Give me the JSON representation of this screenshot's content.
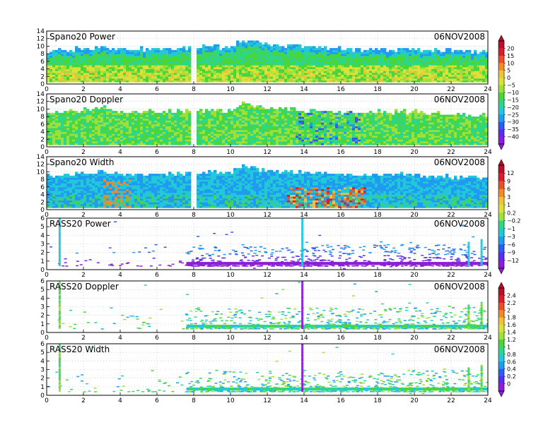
{
  "figure": {
    "date": "06NOV2008"
  },
  "colorbars": [
    {
      "id": "cb-spano",
      "labels": [
        "20",
        "15",
        "10",
        "5",
        "0",
        "−5",
        "−10",
        "−15",
        "−20",
        "−25",
        "−30",
        "−35",
        "−40"
      ]
    },
    {
      "id": "cb-width-power",
      "labels": [
        "12",
        "9",
        "6",
        "3",
        "1",
        "0.2",
        "−0.2",
        "−1",
        "−3",
        "−6",
        "−9",
        "−12"
      ]
    },
    {
      "id": "cb-rass",
      "labels": [
        "2.4",
        "2.2",
        "2",
        "1.8",
        "1.6",
        "1.4",
        "1.2",
        "1",
        "0.8",
        "0.6",
        "0.4",
        "0.2",
        "0"
      ]
    }
  ],
  "colors": {
    "palette": [
      "#8a1fd6",
      "#5a2df0",
      "#2f5cf0",
      "#1f9bf0",
      "#22c8d8",
      "#2dd68a",
      "#4ad63a",
      "#9ee03a",
      "#d8e23a",
      "#f0c23a",
      "#f08a2a",
      "#e8502a",
      "#d81e2a",
      "#b8102a"
    ]
  },
  "chart_data": [
    {
      "type": "heatmap",
      "title": "Spano20 Power",
      "date": "06NOV2008",
      "xticks": [
        "0",
        "2",
        "4",
        "6",
        "8",
        "10",
        "12",
        "14",
        "16",
        "18",
        "20",
        "22",
        "24"
      ],
      "yticks": [
        "0",
        "2",
        "4",
        "6",
        "8",
        "10",
        "12",
        "14"
      ],
      "xlim": [
        0,
        24
      ],
      "ylim": [
        0,
        14
      ],
      "echo_top_km": [
        [
          0,
          8.5
        ],
        [
          3,
          9.5
        ],
        [
          4,
          9
        ],
        [
          6,
          9
        ],
        [
          8,
          9.5
        ],
        [
          10,
          9.5
        ],
        [
          10.5,
          11.5
        ],
        [
          12,
          10
        ],
        [
          14,
          9.5
        ],
        [
          16,
          9
        ],
        [
          18,
          9
        ],
        [
          20,
          9
        ],
        [
          22,
          8.5
        ],
        [
          24,
          8
        ]
      ],
      "color_range": [
        -40,
        20
      ]
    },
    {
      "type": "heatmap",
      "title": "Spano20 Doppler",
      "date": "06NOV2008",
      "xticks": [
        "0",
        "2",
        "4",
        "6",
        "8",
        "10",
        "12",
        "14",
        "16",
        "18",
        "20",
        "22",
        "24"
      ],
      "yticks": [
        "0",
        "2",
        "4",
        "6",
        "8",
        "10",
        "12",
        "14"
      ],
      "xlim": [
        0,
        24
      ],
      "ylim": [
        0,
        14
      ],
      "echo_top_km": [
        [
          0,
          8.5
        ],
        [
          3,
          10
        ],
        [
          4,
          9
        ],
        [
          6,
          9
        ],
        [
          8,
          9.5
        ],
        [
          10,
          9.5
        ],
        [
          10.5,
          11.5
        ],
        [
          12,
          10
        ],
        [
          14,
          9.5
        ],
        [
          16,
          9
        ],
        [
          18,
          9
        ],
        [
          20,
          9
        ],
        [
          22,
          8.5
        ],
        [
          24,
          8
        ]
      ],
      "color_range": [
        -40,
        20
      ]
    },
    {
      "type": "heatmap",
      "title": "Spano20 Width",
      "date": "06NOV2008",
      "xticks": [
        "0",
        "2",
        "4",
        "6",
        "8",
        "10",
        "12",
        "14",
        "16",
        "18",
        "20",
        "22",
        "24"
      ],
      "yticks": [
        "0",
        "2",
        "4",
        "6",
        "8",
        "10",
        "12",
        "14"
      ],
      "xlim": [
        0,
        24
      ],
      "ylim": [
        0,
        14
      ],
      "echo_top_km": [
        [
          0,
          8.5
        ],
        [
          3,
          10
        ],
        [
          4,
          9
        ],
        [
          6,
          9
        ],
        [
          8,
          9.5
        ],
        [
          10,
          9.5
        ],
        [
          10.5,
          11.5
        ],
        [
          12,
          10
        ],
        [
          14,
          9.5
        ],
        [
          16,
          9
        ],
        [
          18,
          9
        ],
        [
          20,
          9
        ],
        [
          22,
          8.5
        ],
        [
          24,
          8
        ]
      ],
      "color_range": [
        -12,
        12
      ]
    },
    {
      "type": "heatmap",
      "title": "RASS20 Power",
      "date": "06NOV2008",
      "xticks": [
        "0",
        "2",
        "4",
        "6",
        "8",
        "10",
        "12",
        "14",
        "16",
        "18",
        "20",
        "22",
        "24"
      ],
      "yticks": [
        "0",
        "1",
        "2",
        "3",
        "4",
        "5",
        "6"
      ],
      "xlim": [
        0,
        24
      ],
      "ylim": [
        0,
        6
      ],
      "color_range": [
        -12,
        12
      ]
    },
    {
      "type": "heatmap",
      "title": "RASS20 Doppler",
      "date": "06NOV2008",
      "xticks": [
        "0",
        "2",
        "4",
        "6",
        "8",
        "10",
        "12",
        "14",
        "16",
        "18",
        "20",
        "22",
        "24"
      ],
      "yticks": [
        "0",
        "1",
        "2",
        "3",
        "4",
        "5",
        "6"
      ],
      "xlim": [
        0,
        24
      ],
      "ylim": [
        0,
        6
      ],
      "color_range": [
        0,
        2.4
      ]
    },
    {
      "type": "heatmap",
      "title": "RASS20 Width",
      "date": "06NOV2008",
      "xticks": [
        "0",
        "2",
        "4",
        "6",
        "8",
        "10",
        "12",
        "14",
        "16",
        "18",
        "20",
        "22",
        "24"
      ],
      "yticks": [
        "0",
        "1",
        "2",
        "3",
        "4",
        "5",
        "6"
      ],
      "xlim": [
        0,
        24
      ],
      "ylim": [
        0,
        6
      ],
      "color_range": [
        0,
        2.4
      ]
    }
  ]
}
